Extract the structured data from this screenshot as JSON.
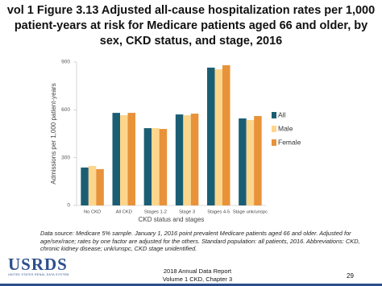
{
  "chart_data": {
    "type": "bar",
    "title": "vol 1 Figure 3.13 Adjusted all-cause hospitalization rates per 1,000 patient-years at risk for Medicare patients aged 66 and older, by sex, CKD status, and stage, 2016",
    "x_label": "CKD status and stages",
    "y_label": "Admissions per 1,000 patient-years",
    "categories": [
      "No CKD",
      "All CKD",
      "Stages 1-2",
      "Stage 3",
      "Stages 4-5",
      "Stage unk/unspc"
    ],
    "series": [
      {
        "name": "All",
        "color": "#1b5e74",
        "values": [
          238,
          581,
          485,
          571,
          865,
          546
        ]
      },
      {
        "name": "Male",
        "color": "#fdd68c",
        "values": [
          248,
          566,
          485,
          566,
          855,
          536
        ]
      },
      {
        "name": "Female",
        "color": "#e8923a",
        "values": [
          228,
          581,
          480,
          576,
          880,
          561
        ]
      }
    ],
    "ylim": [
      0,
      900
    ],
    "yticks": [
      0,
      300,
      600,
      900
    ],
    "grid": false,
    "legend": "right"
  },
  "footnote": "Data source: Medicare 5% sample. January 1, 2016 point prevalent Medicare patients aged 66 and older. Adjusted for age/sex/race; rates by one factor are adjusted for the others. Standard population: all patients, 2016. Abbreviations: CKD, chronic kidney disease; unk/unspc, CKD stage unidentified.",
  "logo": {
    "name": "USRDS",
    "subtitle": "UNITED STATES RENAL DATA SYSTEM"
  },
  "footer": {
    "line1": "2018 Annual Data Report",
    "line2": "Volume 1 CKD, Chapter 3"
  },
  "page_number": "29"
}
